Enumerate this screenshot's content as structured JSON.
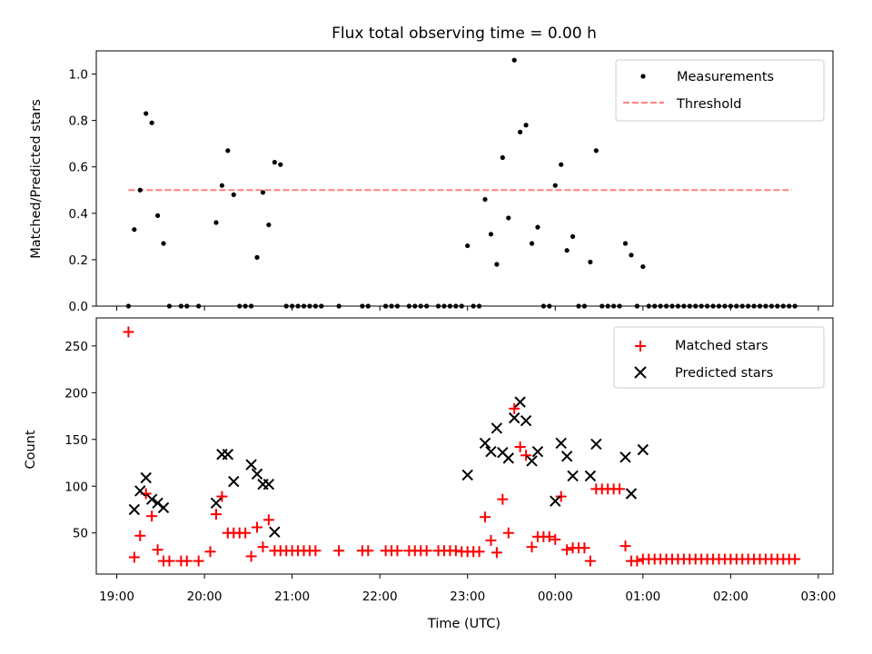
{
  "chart_data": [
    {
      "type": "scatter",
      "title": "Flux total observing time = 0.00 h",
      "xlabel": "",
      "ylabel": "Matched/Predicted stars",
      "ylim": [
        0,
        1.1
      ],
      "yticks": [
        "0.0",
        "0.2",
        "0.4",
        "0.6",
        "0.8",
        "1.0"
      ],
      "legend_position": "top-right",
      "colors": {
        "measurements": "#000000",
        "threshold": "#ff8080"
      },
      "threshold": {
        "name": "Threshold",
        "value": 0.5,
        "x_start": "19:08",
        "x_end": "02:42"
      },
      "series": [
        {
          "name": "Measurements",
          "points": [
            [
              "19:08",
              0.0
            ],
            [
              "19:12",
              0.33
            ],
            [
              "19:16",
              0.5
            ],
            [
              "19:20",
              0.83
            ],
            [
              "19:24",
              0.79
            ],
            [
              "19:28",
              0.39
            ],
            [
              "19:32",
              0.27
            ],
            [
              "19:36",
              0.0
            ],
            [
              "19:44",
              0.0
            ],
            [
              "19:48",
              0.0
            ],
            [
              "19:56",
              0.0
            ],
            [
              "20:08",
              0.36
            ],
            [
              "20:12",
              0.52
            ],
            [
              "20:16",
              0.67
            ],
            [
              "20:20",
              0.48
            ],
            [
              "20:24",
              0.0
            ],
            [
              "20:28",
              0.0
            ],
            [
              "20:32",
              0.0
            ],
            [
              "20:36",
              0.21
            ],
            [
              "20:40",
              0.49
            ],
            [
              "20:44",
              0.35
            ],
            [
              "20:48",
              0.62
            ],
            [
              "20:52",
              0.61
            ],
            [
              "20:56",
              0.0
            ],
            [
              "21:00",
              0.0
            ],
            [
              "21:04",
              0.0
            ],
            [
              "21:08",
              0.0
            ],
            [
              "21:12",
              0.0
            ],
            [
              "21:16",
              0.0
            ],
            [
              "21:20",
              0.0
            ],
            [
              "21:32",
              0.0
            ],
            [
              "21:48",
              0.0
            ],
            [
              "21:52",
              0.0
            ],
            [
              "22:04",
              0.0
            ],
            [
              "22:08",
              0.0
            ],
            [
              "22:12",
              0.0
            ],
            [
              "22:20",
              0.0
            ],
            [
              "22:24",
              0.0
            ],
            [
              "22:28",
              0.0
            ],
            [
              "22:32",
              0.0
            ],
            [
              "22:40",
              0.0
            ],
            [
              "22:44",
              0.0
            ],
            [
              "22:48",
              0.0
            ],
            [
              "22:52",
              0.0
            ],
            [
              "22:56",
              0.0
            ],
            [
              "23:00",
              0.26
            ],
            [
              "23:04",
              0.0
            ],
            [
              "23:08",
              0.0
            ],
            [
              "23:12",
              0.46
            ],
            [
              "23:16",
              0.31
            ],
            [
              "23:20",
              0.18
            ],
            [
              "23:24",
              0.64
            ],
            [
              "23:28",
              0.38
            ],
            [
              "23:32",
              1.06
            ],
            [
              "23:36",
              0.75
            ],
            [
              "23:40",
              0.78
            ],
            [
              "23:44",
              0.27
            ],
            [
              "23:48",
              0.34
            ],
            [
              "23:52",
              0.0
            ],
            [
              "23:56",
              0.0
            ],
            [
              "00:00",
              0.52
            ],
            [
              "00:04",
              0.61
            ],
            [
              "00:08",
              0.24
            ],
            [
              "00:12",
              0.3
            ],
            [
              "00:16",
              0.0
            ],
            [
              "00:20",
              0.0
            ],
            [
              "00:24",
              0.19
            ],
            [
              "00:28",
              0.67
            ],
            [
              "00:32",
              0.0
            ],
            [
              "00:36",
              0.0
            ],
            [
              "00:40",
              0.0
            ],
            [
              "00:44",
              0.0
            ],
            [
              "00:48",
              0.27
            ],
            [
              "00:52",
              0.22
            ],
            [
              "00:56",
              0.0
            ],
            [
              "01:00",
              0.17
            ],
            [
              "01:04",
              0.0
            ],
            [
              "01:08",
              0.0
            ],
            [
              "01:12",
              0.0
            ],
            [
              "01:16",
              0.0
            ],
            [
              "01:20",
              0.0
            ],
            [
              "01:24",
              0.0
            ],
            [
              "01:28",
              0.0
            ],
            [
              "01:32",
              0.0
            ],
            [
              "01:36",
              0.0
            ],
            [
              "01:40",
              0.0
            ],
            [
              "01:44",
              0.0
            ],
            [
              "01:48",
              0.0
            ],
            [
              "01:52",
              0.0
            ],
            [
              "01:56",
              0.0
            ],
            [
              "02:00",
              0.0
            ],
            [
              "02:04",
              0.0
            ],
            [
              "02:08",
              0.0
            ],
            [
              "02:12",
              0.0
            ],
            [
              "02:16",
              0.0
            ],
            [
              "02:20",
              0.0
            ],
            [
              "02:24",
              0.0
            ],
            [
              "02:28",
              0.0
            ],
            [
              "02:32",
              0.0
            ],
            [
              "02:36",
              0.0
            ],
            [
              "02:40",
              0.0
            ],
            [
              "02:44",
              0.0
            ]
          ]
        }
      ]
    },
    {
      "type": "scatter",
      "title": "",
      "xlabel": "Time (UTC)",
      "ylabel": "Count",
      "ylim": [
        6,
        280
      ],
      "yticks": [
        "50",
        "100",
        "150",
        "200",
        "250"
      ],
      "xticks": [
        "19:00",
        "20:00",
        "21:00",
        "22:00",
        "23:00",
        "00:00",
        "01:00",
        "02:00",
        "03:00"
      ],
      "legend_position": "top-right",
      "colors": {
        "matched": "#ff0000",
        "predicted": "#000000"
      },
      "series": [
        {
          "name": "Matched stars",
          "points": [
            [
              "19:08",
              265
            ],
            [
              "19:12",
              24
            ],
            [
              "19:16",
              47
            ],
            [
              "19:20",
              92
            ],
            [
              "19:24",
              68
            ],
            [
              "19:28",
              32
            ],
            [
              "19:32",
              20
            ],
            [
              "19:36",
              20
            ],
            [
              "19:44",
              20
            ],
            [
              "19:48",
              20
            ],
            [
              "19:56",
              20
            ],
            [
              "20:04",
              30
            ],
            [
              "20:08",
              70
            ],
            [
              "20:12",
              89
            ],
            [
              "20:16",
              50
            ],
            [
              "20:20",
              50
            ],
            [
              "20:24",
              50
            ],
            [
              "20:28",
              50
            ],
            [
              "20:32",
              25
            ],
            [
              "20:36",
              56
            ],
            [
              "20:40",
              35
            ],
            [
              "20:44",
              64
            ],
            [
              "20:48",
              31
            ],
            [
              "20:52",
              31
            ],
            [
              "20:56",
              31
            ],
            [
              "21:00",
              31
            ],
            [
              "21:04",
              31
            ],
            [
              "21:08",
              31
            ],
            [
              "21:12",
              31
            ],
            [
              "21:16",
              31
            ],
            [
              "21:32",
              31
            ],
            [
              "21:48",
              31
            ],
            [
              "21:52",
              31
            ],
            [
              "22:04",
              31
            ],
            [
              "22:08",
              31
            ],
            [
              "22:12",
              31
            ],
            [
              "22:20",
              31
            ],
            [
              "22:24",
              31
            ],
            [
              "22:28",
              31
            ],
            [
              "22:32",
              31
            ],
            [
              "22:40",
              31
            ],
            [
              "22:44",
              31
            ],
            [
              "22:48",
              31
            ],
            [
              "22:52",
              31
            ],
            [
              "22:56",
              30
            ],
            [
              "23:00",
              30
            ],
            [
              "23:04",
              30
            ],
            [
              "23:08",
              30
            ],
            [
              "23:12",
              67
            ],
            [
              "23:16",
              42
            ],
            [
              "23:20",
              29
            ],
            [
              "23:24",
              86
            ],
            [
              "23:28",
              50
            ],
            [
              "23:32",
              183
            ],
            [
              "23:36",
              142
            ],
            [
              "23:40",
              133
            ],
            [
              "23:44",
              35
            ],
            [
              "23:48",
              46
            ],
            [
              "23:52",
              46
            ],
            [
              "23:56",
              46
            ],
            [
              "00:00",
              43
            ],
            [
              "00:04",
              89
            ],
            [
              "00:08",
              32
            ],
            [
              "00:12",
              34
            ],
            [
              "00:16",
              34
            ],
            [
              "00:20",
              34
            ],
            [
              "00:24",
              20
            ],
            [
              "00:28",
              97
            ],
            [
              "00:32",
              97
            ],
            [
              "00:36",
              97
            ],
            [
              "00:40",
              97
            ],
            [
              "00:44",
              97
            ],
            [
              "00:48",
              36
            ],
            [
              "00:52",
              20
            ],
            [
              "00:56",
              20
            ],
            [
              "01:00",
              22
            ],
            [
              "01:04",
              22
            ],
            [
              "01:08",
              22
            ],
            [
              "01:12",
              22
            ],
            [
              "01:16",
              22
            ],
            [
              "01:20",
              22
            ],
            [
              "01:24",
              22
            ],
            [
              "01:28",
              22
            ],
            [
              "01:32",
              22
            ],
            [
              "01:36",
              22
            ],
            [
              "01:40",
              22
            ],
            [
              "01:44",
              22
            ],
            [
              "01:48",
              22
            ],
            [
              "01:52",
              22
            ],
            [
              "01:56",
              22
            ],
            [
              "02:00",
              22
            ],
            [
              "02:04",
              22
            ],
            [
              "02:08",
              22
            ],
            [
              "02:12",
              22
            ],
            [
              "02:16",
              22
            ],
            [
              "02:20",
              22
            ],
            [
              "02:24",
              22
            ],
            [
              "02:28",
              22
            ],
            [
              "02:32",
              22
            ],
            [
              "02:36",
              22
            ],
            [
              "02:40",
              22
            ],
            [
              "02:44",
              22
            ]
          ]
        },
        {
          "name": "Predicted stars",
          "points": [
            [
              "19:12",
              75
            ],
            [
              "19:16",
              95
            ],
            [
              "19:20",
              109
            ],
            [
              "19:24",
              86
            ],
            [
              "19:28",
              82
            ],
            [
              "19:32",
              77
            ],
            [
              "20:08",
              82
            ],
            [
              "20:12",
              134
            ],
            [
              "20:16",
              134
            ],
            [
              "20:20",
              105
            ],
            [
              "20:32",
              123
            ],
            [
              "20:36",
              113
            ],
            [
              "20:40",
              102
            ],
            [
              "20:44",
              102
            ],
            [
              "20:48",
              51
            ],
            [
              "23:00",
              112
            ],
            [
              "23:12",
              146
            ],
            [
              "23:16",
              137
            ],
            [
              "23:20",
              162
            ],
            [
              "23:24",
              136
            ],
            [
              "23:28",
              130
            ],
            [
              "23:32",
              173
            ],
            [
              "23:36",
              190
            ],
            [
              "23:40",
              170
            ],
            [
              "23:44",
              127
            ],
            [
              "23:48",
              137
            ],
            [
              "00:00",
              84
            ],
            [
              "00:04",
              146
            ],
            [
              "00:08",
              132
            ],
            [
              "00:12",
              111
            ],
            [
              "00:24",
              111
            ],
            [
              "00:28",
              145
            ],
            [
              "00:48",
              131
            ],
            [
              "00:52",
              92
            ],
            [
              "01:00",
              139
            ]
          ]
        }
      ]
    }
  ]
}
